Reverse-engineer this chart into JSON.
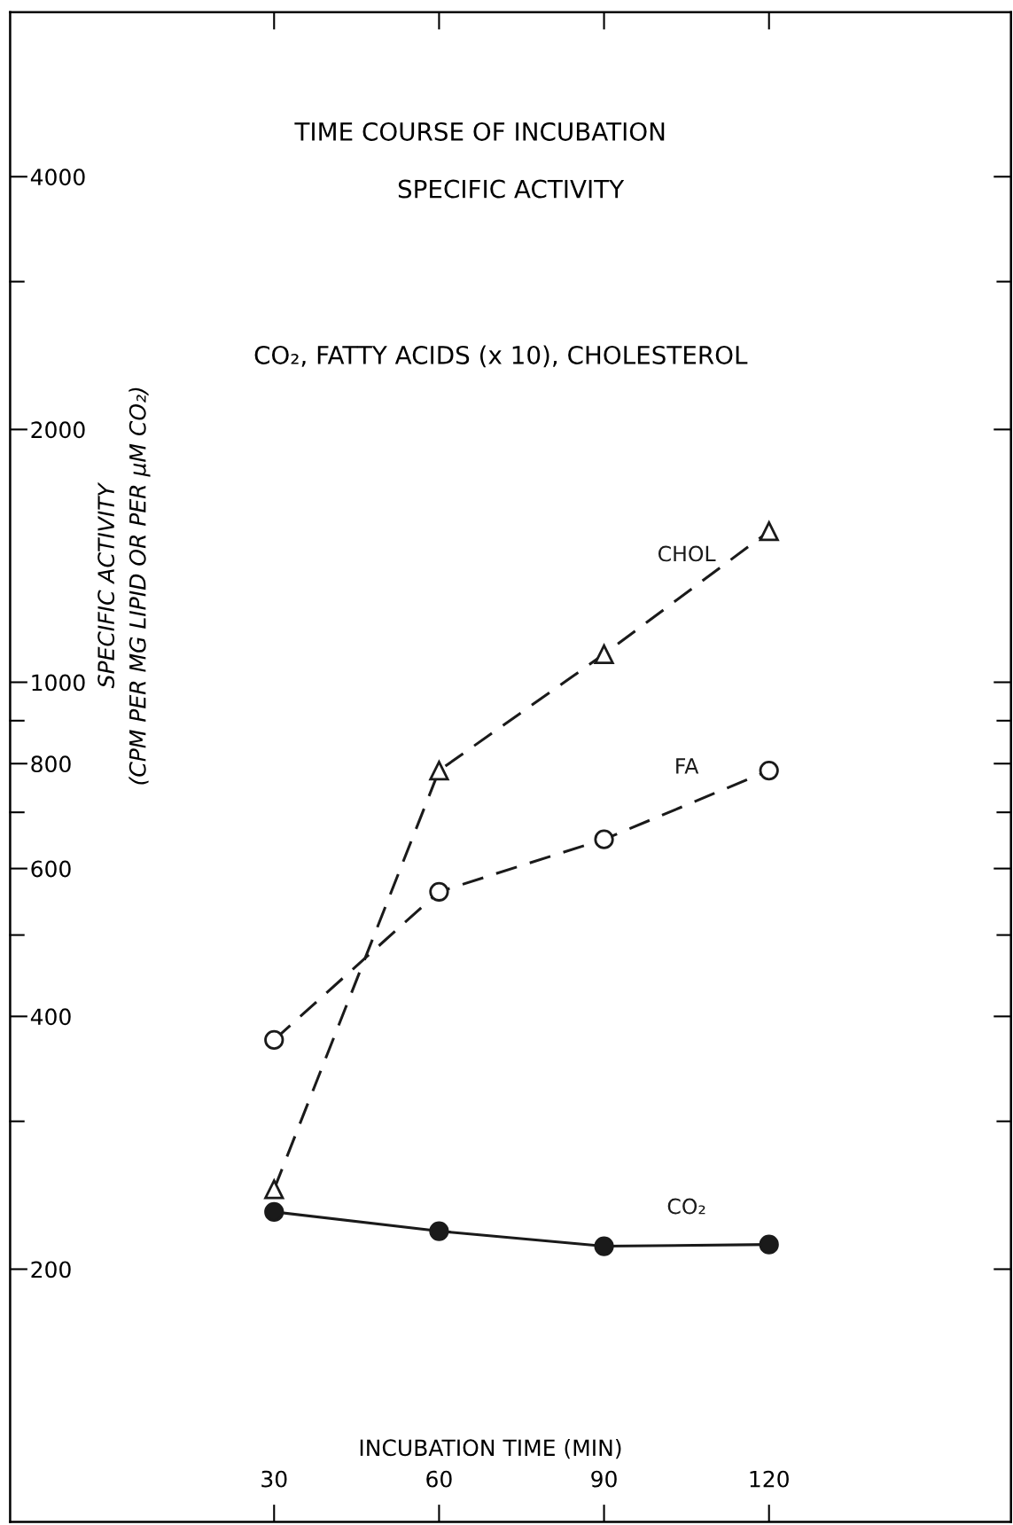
{
  "chart_data": {
    "type": "line",
    "title": "TIME COURSE OF INCUBATION",
    "subtitle": "SPECIFIC ACTIVITY",
    "annotations": [
      "CO₂, FATTY ACIDS (x 10), CHOLESTEROL"
    ],
    "xlabel": "INCUBATION TIME (MIN)",
    "ylabel": "SPECIFIC ACTIVITY\n(CPM PER MG LIPID OR PER µM CO₂)",
    "x": [
      30,
      60,
      90,
      120
    ],
    "series": [
      {
        "name": "CHOL",
        "color": "#1a1a1a",
        "values": [
          249,
          785,
          1080,
          1513
        ],
        "marker": "triangle",
        "line_style": "dashed"
      },
      {
        "name": "FA",
        "color": "#1a1a1a",
        "values": [
          375,
          563,
          650,
          785
        ],
        "marker": "circle",
        "line_style": "dashed"
      },
      {
        "name": "CO₂",
        "color": "#1a1a1a",
        "values": [
          234,
          222,
          213,
          214
        ],
        "marker": "circle",
        "line_style": "solid"
      }
    ],
    "log": "y",
    "xlim": [
      -18,
      164
    ],
    "ylim": [
      100,
      6280
    ],
    "xticks": [
      30,
      60,
      90,
      120
    ],
    "yticks": [
      200,
      {
        "value": 300,
        "label": null
      },
      400,
      {
        "value": 500,
        "label": null
      },
      600,
      {
        "value": 700,
        "label": null
      },
      800,
      {
        "value": 900,
        "label": null
      },
      1000,
      2000,
      {
        "value": 3000,
        "label": null
      },
      4000
    ],
    "grid": false,
    "legend": false
  }
}
